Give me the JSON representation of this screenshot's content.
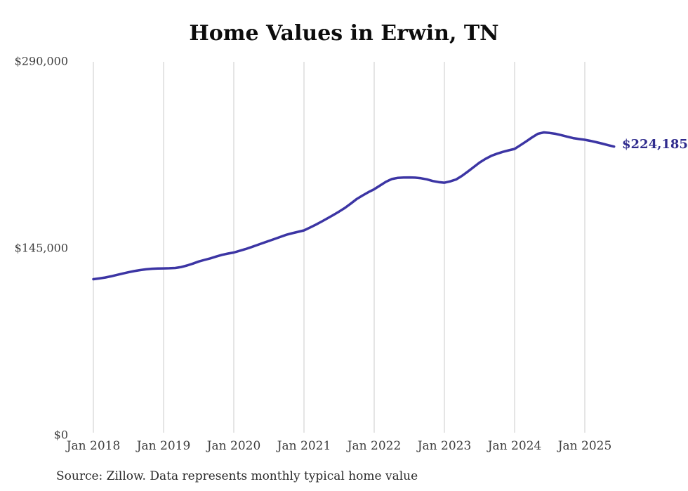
{
  "chart": {
    "title": "Home Values in Erwin, TN",
    "source": "Source: Zillow. Data represents monthly typical home value",
    "end_label": "$224,185",
    "colors": {
      "line": "#3c35a4",
      "end_label": "#2f2b8d",
      "grid": "#cbcbcb",
      "axis_text": "#3e3e3e",
      "title": "#0c0c0c",
      "source_text": "#2a2a2a",
      "background": "#ffffff"
    }
  },
  "chart_data": {
    "type": "line",
    "title": "Home Values in Erwin, TN",
    "series_name": "Monthly typical home value",
    "xlabel": "",
    "ylabel": "",
    "ylim": [
      0,
      290000
    ],
    "grid": "vertical-only",
    "legend": "none",
    "y_ticks": [
      {
        "label": "$290,000",
        "value": 290000
      },
      {
        "label": "$145,000",
        "value": 145000
      },
      {
        "label": "$0",
        "value": 0
      }
    ],
    "x_tick_labels": [
      "Jan 2018",
      "Jan 2019",
      "Jan 2020",
      "Jan 2021",
      "Jan 2022",
      "Jan 2023",
      "Jan 2024",
      "Jan 2025"
    ],
    "last_value": 224185,
    "last_value_label": "$224,185",
    "x": [
      "2018-01",
      "2018-02",
      "2018-03",
      "2018-04",
      "2018-05",
      "2018-06",
      "2018-07",
      "2018-08",
      "2018-09",
      "2018-10",
      "2018-11",
      "2018-12",
      "2019-01",
      "2019-02",
      "2019-03",
      "2019-04",
      "2019-05",
      "2019-06",
      "2019-07",
      "2019-08",
      "2019-09",
      "2019-10",
      "2019-11",
      "2019-12",
      "2020-01",
      "2020-02",
      "2020-03",
      "2020-04",
      "2020-05",
      "2020-06",
      "2020-07",
      "2020-08",
      "2020-09",
      "2020-10",
      "2020-11",
      "2020-12",
      "2021-01",
      "2021-02",
      "2021-03",
      "2021-04",
      "2021-05",
      "2021-06",
      "2021-07",
      "2021-08",
      "2021-09",
      "2021-10",
      "2021-11",
      "2021-12",
      "2022-01",
      "2022-02",
      "2022-03",
      "2022-04",
      "2022-05",
      "2022-06",
      "2022-07",
      "2022-08",
      "2022-09",
      "2022-10",
      "2022-11",
      "2022-12",
      "2023-01",
      "2023-02",
      "2023-03",
      "2023-04",
      "2023-05",
      "2023-06",
      "2023-07",
      "2023-08",
      "2023-09",
      "2023-10",
      "2023-11",
      "2023-12",
      "2024-01",
      "2024-02",
      "2024-03",
      "2024-04",
      "2024-05",
      "2024-06",
      "2024-07",
      "2024-08",
      "2024-09",
      "2024-10",
      "2024-11",
      "2024-12",
      "2025-01",
      "2025-02",
      "2025-03",
      "2025-04",
      "2025-05",
      "2025-06"
    ],
    "values": [
      121300,
      121900,
      122600,
      123500,
      124600,
      125700,
      126700,
      127600,
      128400,
      129000,
      129400,
      129600,
      129700,
      129800,
      130000,
      130700,
      131900,
      133400,
      135000,
      136300,
      137500,
      138900,
      140200,
      141200,
      142000,
      143300,
      144700,
      146200,
      147800,
      149400,
      151000,
      152600,
      154200,
      155800,
      157000,
      158100,
      159200,
      161300,
      163600,
      166000,
      168500,
      171100,
      173800,
      176600,
      180000,
      183500,
      186200,
      188800,
      191100,
      194000,
      196900,
      199000,
      199900,
      200200,
      200300,
      200100,
      199600,
      198800,
      197500,
      196700,
      196200,
      197200,
      198700,
      201500,
      204800,
      208300,
      211800,
      214600,
      217000,
      218700,
      220100,
      221300,
      222400,
      225300,
      228300,
      231400,
      234200,
      235200,
      234800,
      234100,
      233100,
      231900,
      230800,
      230100,
      229500,
      228600,
      227600,
      226500,
      225300,
      224185
    ]
  }
}
